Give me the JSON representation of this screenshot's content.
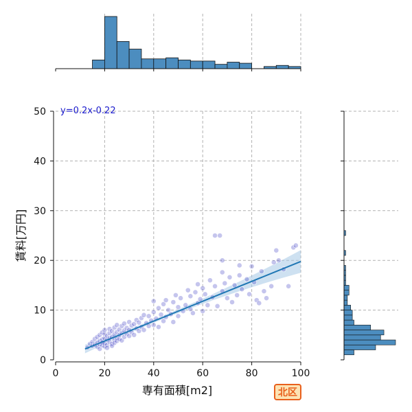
{
  "chart_data": {
    "type": "scatter",
    "xlabel": "専有面積[m2]",
    "ylabel": "賃料[万円]",
    "xlim": [
      0,
      100
    ],
    "ylim": [
      0,
      50
    ],
    "x_ticks": [
      0,
      20,
      40,
      60,
      80,
      100
    ],
    "y_ticks": [
      0,
      10,
      20,
      30,
      40,
      50
    ],
    "grid": true,
    "regression": {
      "equation_label": "y=0.2x-0.22",
      "x_range": [
        12,
        100
      ],
      "slope": 0.2,
      "intercept": -0.22
    },
    "badge": "北区",
    "colors": {
      "point": "#3030c0",
      "regression": "#1f77b4",
      "ci_band": "#a6c8e6",
      "hist": "#4c8dbf",
      "badge_border": "#e8601c",
      "badge_fill": "#fde3b3",
      "equation": "#1a1acc"
    },
    "points": [
      [
        13,
        2.5
      ],
      [
        14,
        3.2
      ],
      [
        15,
        3.6
      ],
      [
        15,
        2.8
      ],
      [
        16,
        3.0
      ],
      [
        16,
        4.2
      ],
      [
        17,
        2.6
      ],
      [
        17,
        3.4
      ],
      [
        17,
        4.6
      ],
      [
        18,
        3.1
      ],
      [
        18,
        2.2
      ],
      [
        18,
        5.0
      ],
      [
        18,
        3.8
      ],
      [
        19,
        2.9
      ],
      [
        19,
        4.1
      ],
      [
        19,
        3.5
      ],
      [
        19,
        5.5
      ],
      [
        20,
        2.7
      ],
      [
        20,
        3.3
      ],
      [
        20,
        4.4
      ],
      [
        20,
        5.2
      ],
      [
        20,
        6.0
      ],
      [
        21,
        3.0
      ],
      [
        21,
        4.0
      ],
      [
        21,
        4.8
      ],
      [
        21,
        2.4
      ],
      [
        22,
        3.6
      ],
      [
        22,
        5.4
      ],
      [
        22,
        4.3
      ],
      [
        22,
        6.2
      ],
      [
        23,
        3.2
      ],
      [
        23,
        4.6
      ],
      [
        23,
        5.8
      ],
      [
        23,
        2.8
      ],
      [
        24,
        4.0
      ],
      [
        24,
        5.1
      ],
      [
        24,
        6.5
      ],
      [
        24,
        3.4
      ],
      [
        25,
        4.4
      ],
      [
        25,
        5.6
      ],
      [
        25,
        3.8
      ],
      [
        25,
        7.0
      ],
      [
        26,
        4.2
      ],
      [
        26,
        5.0
      ],
      [
        26,
        6.1
      ],
      [
        27,
        3.9
      ],
      [
        27,
        5.4
      ],
      [
        27,
        6.8
      ],
      [
        28,
        4.6
      ],
      [
        28,
        5.9
      ],
      [
        28,
        7.3
      ],
      [
        29,
        5.2
      ],
      [
        29,
        6.4
      ],
      [
        30,
        4.8
      ],
      [
        30,
        6.0
      ],
      [
        30,
        7.6
      ],
      [
        31,
        5.5
      ],
      [
        31,
        6.9
      ],
      [
        32,
        5.0
      ],
      [
        32,
        7.2
      ],
      [
        33,
        6.3
      ],
      [
        33,
        8.0
      ],
      [
        34,
        5.8
      ],
      [
        34,
        7.5
      ],
      [
        35,
        6.6
      ],
      [
        35,
        8.4
      ],
      [
        36,
        6.0
      ],
      [
        36,
        9.0
      ],
      [
        37,
        7.4
      ],
      [
        38,
        6.8
      ],
      [
        38,
        8.8
      ],
      [
        39,
        7.9
      ],
      [
        40,
        7.0
      ],
      [
        40,
        9.6
      ],
      [
        40,
        11.8
      ],
      [
        41,
        8.3
      ],
      [
        42,
        10.4
      ],
      [
        42,
        6.6
      ],
      [
        43,
        9.1
      ],
      [
        44,
        11.2
      ],
      [
        44,
        7.8
      ],
      [
        45,
        12.0
      ],
      [
        45,
        8.6
      ],
      [
        46,
        10.0
      ],
      [
        47,
        9.2
      ],
      [
        48,
        11.6
      ],
      [
        48,
        7.6
      ],
      [
        49,
        13.0
      ],
      [
        50,
        10.6
      ],
      [
        50,
        8.8
      ],
      [
        51,
        12.4
      ],
      [
        52,
        9.8
      ],
      [
        53,
        11.0
      ],
      [
        54,
        14.0
      ],
      [
        55,
        10.2
      ],
      [
        55,
        12.8
      ],
      [
        56,
        9.4
      ],
      [
        57,
        13.6
      ],
      [
        58,
        11.4
      ],
      [
        58,
        15.2
      ],
      [
        59,
        12.2
      ],
      [
        60,
        9.8
      ],
      [
        60,
        14.4
      ],
      [
        61,
        13.2
      ],
      [
        62,
        11.0
      ],
      [
        63,
        16.0
      ],
      [
        64,
        12.6
      ],
      [
        65,
        14.8
      ],
      [
        66,
        10.8
      ],
      [
        67,
        25.0
      ],
      [
        68,
        13.8
      ],
      [
        68,
        17.6
      ],
      [
        69,
        15.4
      ],
      [
        70,
        12.4
      ],
      [
        71,
        16.6
      ],
      [
        72,
        11.6
      ],
      [
        73,
        15.0
      ],
      [
        74,
        13.0
      ],
      [
        75,
        17.0
      ],
      [
        76,
        14.2
      ],
      [
        78,
        16.2
      ],
      [
        79,
        13.2
      ],
      [
        80,
        18.8
      ],
      [
        81,
        15.6
      ],
      [
        82,
        12.0
      ],
      [
        83,
        11.4
      ],
      [
        84,
        17.8
      ],
      [
        85,
        13.8
      ],
      [
        86,
        12.4
      ],
      [
        88,
        14.8
      ],
      [
        90,
        22.0
      ],
      [
        91,
        20.0
      ],
      [
        93,
        18.2
      ],
      [
        95,
        14.8
      ],
      [
        97,
        22.6
      ],
      [
        98,
        23.0
      ],
      [
        65,
        25.0
      ],
      [
        68,
        20.0
      ],
      [
        75,
        19.0
      ],
      [
        89,
        19.6
      ]
    ],
    "top_histogram": {
      "bin_edges": [
        0,
        5,
        10,
        15,
        20,
        25,
        30,
        35,
        40,
        45,
        50,
        55,
        60,
        65,
        70,
        75,
        80,
        85,
        90,
        95,
        100
      ],
      "counts": [
        0,
        0,
        0,
        8,
        48,
        25,
        18,
        9,
        9,
        10,
        8,
        7,
        7,
        4,
        6,
        5,
        0,
        2,
        3,
        2
      ]
    },
    "right_histogram": {
      "bin_edges": [
        1,
        2,
        3,
        4,
        5,
        6,
        7,
        8,
        9,
        10,
        11,
        12,
        13,
        14,
        15,
        16,
        17,
        18,
        19,
        20,
        21,
        22,
        23,
        24,
        25,
        26
      ],
      "counts": [
        6,
        19,
        31,
        22,
        24,
        16,
        6,
        5,
        5,
        4,
        2,
        2,
        3,
        3,
        1,
        1,
        1,
        1,
        0,
        0,
        1,
        0,
        0,
        0,
        1
      ]
    }
  }
}
